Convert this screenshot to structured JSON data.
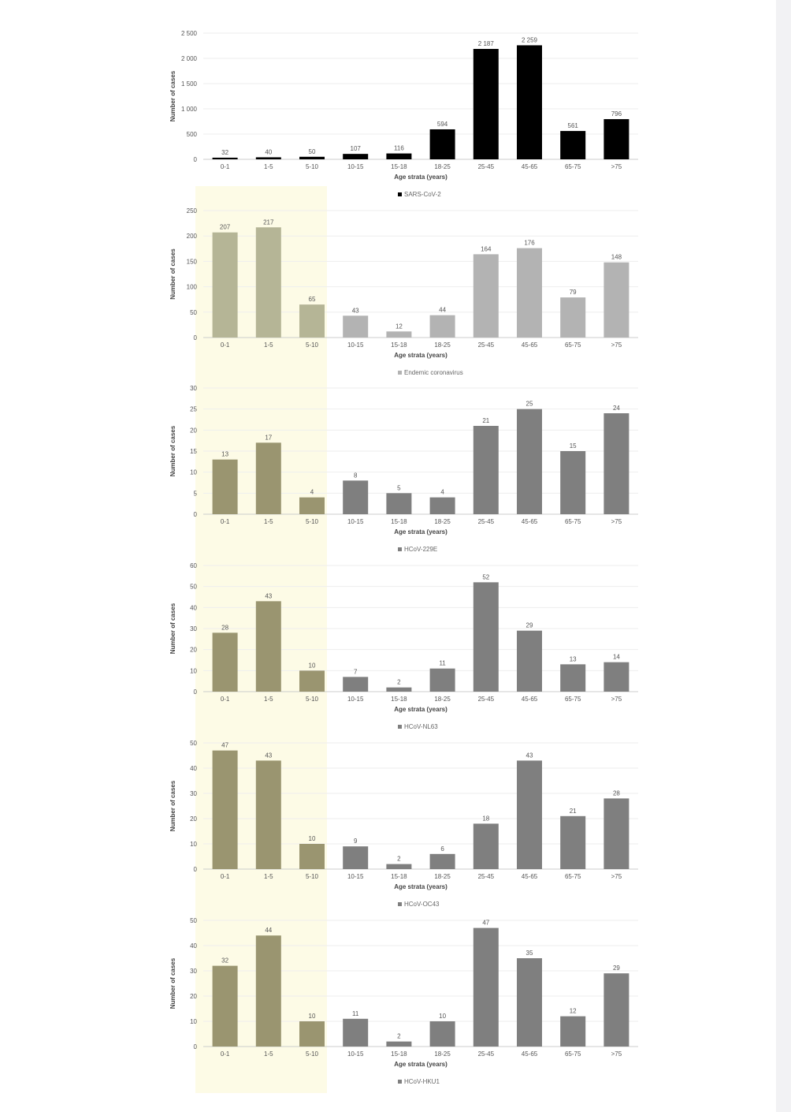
{
  "colors": {
    "highlight": "#fdfbe6",
    "sars": "#000000",
    "endemic": "#b3b3b3",
    "endemic_highlight": "#b5b596",
    "strain": "#7f7f7f",
    "strain_highlight": "#9a9570",
    "gridline": "#eeeeee",
    "axis": "#cccccc"
  },
  "highlight_categories": [
    "0-1",
    "1-5",
    "5-10"
  ],
  "chart_data": [
    {
      "type": "bar",
      "categories": [
        "0-1",
        "1-5",
        "5-10",
        "10-15",
        "15-18",
        "18-25",
        "25-45",
        "45-65",
        "65-75",
        ">75"
      ],
      "series": [
        {
          "name": "SARS-CoV-2",
          "values": [
            32,
            40,
            50,
            107,
            116,
            594,
            2187,
            2259,
            561,
            796
          ]
        }
      ],
      "value_labels": [
        "32",
        "40",
        "50",
        "107",
        "116",
        "594",
        "2 187",
        "2 259",
        "561",
        "796"
      ],
      "ylabel": "Number of cases",
      "xlabel": "Age strata (years)",
      "ylim": [
        0,
        2500
      ],
      "yticks": [
        0,
        500,
        1000,
        1500,
        2000,
        2500
      ],
      "ytick_labels": [
        "0",
        "500",
        "1 000",
        "1 500",
        "2 000",
        "2 500"
      ],
      "legend": "bottom",
      "grid": true
    },
    {
      "type": "bar",
      "categories": [
        "0-1",
        "1-5",
        "5-10",
        "10-15",
        "15-18",
        "18-25",
        "25-45",
        "45-65",
        "65-75",
        ">75"
      ],
      "series": [
        {
          "name": "Endemic coronavirus",
          "values": [
            207,
            217,
            65,
            43,
            12,
            44,
            164,
            176,
            79,
            148
          ]
        }
      ],
      "value_labels": [
        "207",
        "217",
        "65",
        "43",
        "12",
        "44",
        "164",
        "176",
        "79",
        "148"
      ],
      "ylabel": "Number of cases",
      "xlabel": "Age strata (years)",
      "ylim": [
        0,
        250
      ],
      "yticks": [
        0,
        50,
        100,
        150,
        200,
        250
      ],
      "ytick_labels": [
        "0",
        "50",
        "100",
        "150",
        "200",
        "250"
      ],
      "legend": "bottom",
      "grid": true
    },
    {
      "type": "bar",
      "categories": [
        "0-1",
        "1-5",
        "5-10",
        "10-15",
        "15-18",
        "18-25",
        "25-45",
        "45-65",
        "65-75",
        ">75"
      ],
      "series": [
        {
          "name": "HCoV-229E",
          "values": [
            13,
            17,
            4,
            8,
            5,
            4,
            21,
            25,
            15,
            24
          ]
        }
      ],
      "value_labels": [
        "13",
        "17",
        "4",
        "8",
        "5",
        "4",
        "21",
        "25",
        "15",
        "24"
      ],
      "ylabel": "Number of cases",
      "xlabel": "Age strata (years)",
      "ylim": [
        0,
        30
      ],
      "yticks": [
        0,
        5,
        10,
        15,
        20,
        25,
        30
      ],
      "ytick_labels": [
        "0",
        "5",
        "10",
        "15",
        "20",
        "25",
        "30"
      ],
      "legend": "bottom",
      "grid": true
    },
    {
      "type": "bar",
      "categories": [
        "0-1",
        "1-5",
        "5-10",
        "10-15",
        "15-18",
        "18-25",
        "25-45",
        "45-65",
        "65-75",
        ">75"
      ],
      "series": [
        {
          "name": "HCoV-NL63",
          "values": [
            28,
            43,
            10,
            7,
            2,
            11,
            52,
            29,
            13,
            14
          ]
        }
      ],
      "value_labels": [
        "28",
        "43",
        "10",
        "7",
        "2",
        "11",
        "52",
        "29",
        "13",
        "14"
      ],
      "ylabel": "Number of cases",
      "xlabel": "Age strata (years)",
      "ylim": [
        0,
        60
      ],
      "yticks": [
        0,
        10,
        20,
        30,
        40,
        50,
        60
      ],
      "ytick_labels": [
        "0",
        "10",
        "20",
        "30",
        "40",
        "50",
        "60"
      ],
      "legend": "bottom",
      "grid": true
    },
    {
      "type": "bar",
      "categories": [
        "0-1",
        "1-5",
        "5-10",
        "10-15",
        "15-18",
        "18-25",
        "25-45",
        "45-65",
        "65-75",
        ">75"
      ],
      "series": [
        {
          "name": "HCoV-OC43",
          "values": [
            47,
            43,
            10,
            9,
            2,
            6,
            18,
            43,
            21,
            28
          ]
        }
      ],
      "value_labels": [
        "47",
        "43",
        "10",
        "9",
        "2",
        "6",
        "18",
        "43",
        "21",
        "28"
      ],
      "ylabel": "Number of cases",
      "xlabel": "Age strata (years)",
      "ylim": [
        0,
        50
      ],
      "yticks": [
        0,
        10,
        20,
        30,
        40,
        50
      ],
      "ytick_labels": [
        "0",
        "10",
        "20",
        "30",
        "40",
        "50"
      ],
      "legend": "bottom",
      "grid": true
    },
    {
      "type": "bar",
      "categories": [
        "0-1",
        "1-5",
        "5-10",
        "10-15",
        "15-18",
        "18-25",
        "25-45",
        "45-65",
        "65-75",
        ">75"
      ],
      "series": [
        {
          "name": "HCoV-HKU1",
          "values": [
            32,
            44,
            10,
            11,
            2,
            10,
            47,
            35,
            12,
            29
          ]
        }
      ],
      "value_labels": [
        "32",
        "44",
        "10",
        "11",
        "2",
        "10",
        "47",
        "35",
        "12",
        "29"
      ],
      "ylabel": "Number of cases",
      "xlabel": "Age strata (years)",
      "ylim": [
        0,
        50
      ],
      "yticks": [
        0,
        10,
        20,
        30,
        40,
        50
      ],
      "ytick_labels": [
        "0",
        "10",
        "20",
        "30",
        "40",
        "50"
      ],
      "legend": "bottom",
      "grid": true
    }
  ]
}
